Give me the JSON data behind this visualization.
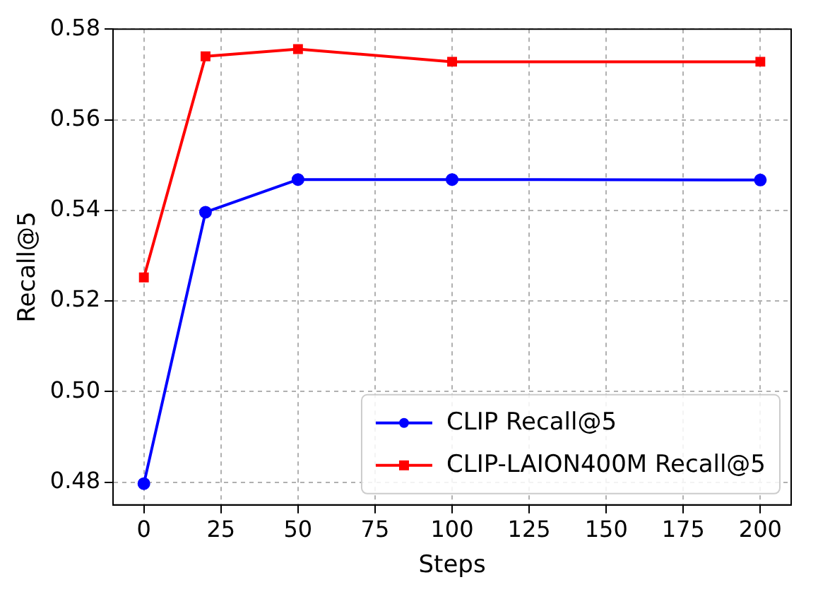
{
  "chart_data": {
    "type": "line",
    "xlabel": "Steps",
    "ylabel": "Recall@5",
    "x": [
      0,
      20,
      50,
      100,
      200
    ],
    "series": [
      {
        "name": "CLIP Recall@5",
        "color": "#0000ff",
        "marker": "circle",
        "values": [
          0.4797,
          0.5396,
          0.5468,
          0.5468,
          0.5467
        ]
      },
      {
        "name": "CLIP-LAION400M Recall@5",
        "color": "#ff0000",
        "marker": "square",
        "values": [
          0.5252,
          0.574,
          0.5756,
          0.5728,
          0.5728
        ]
      }
    ],
    "xlim": [
      -10,
      210
    ],
    "xticks": [
      0,
      25,
      50,
      75,
      100,
      125,
      150,
      175,
      200
    ],
    "ylim": [
      0.475,
      0.58
    ],
    "yticks": [
      0.48,
      {
        "value": 0.5,
        "label": "0.50"
      },
      0.52,
      0.54,
      0.56,
      0.58
    ],
    "grid": true,
    "legend": "bottom right"
  }
}
